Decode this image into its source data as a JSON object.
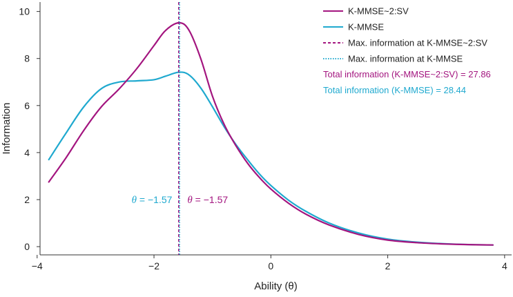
{
  "chart_data": {
    "type": "line",
    "xlabel": "Ability (θ)",
    "ylabel": "Information",
    "xlim": [
      -3.95,
      4.12
    ],
    "ylim": [
      -0.35,
      10.4
    ],
    "xticks": [
      -4,
      -2,
      0,
      2,
      4
    ],
    "xtick_labels": [
      "−4",
      "−2",
      "0",
      "2",
      "4"
    ],
    "yticks": [
      0,
      2,
      4,
      6,
      8,
      10
    ],
    "ytick_labels": [
      "0",
      "2",
      "4",
      "6",
      "8",
      "10"
    ],
    "grid": false,
    "legend_position": "top-right",
    "series": [
      {
        "name": "K-MMSE~2:SV",
        "color": "#a3157f",
        "style": "solid",
        "x": [
          -3.8,
          -3.5,
          -3.2,
          -2.9,
          -2.6,
          -2.3,
          -2.0,
          -1.8,
          -1.57,
          -1.4,
          -1.2,
          -1.0,
          -0.8,
          -0.6,
          -0.4,
          -0.2,
          0.0,
          0.3,
          0.6,
          1.0,
          1.5,
          2.0,
          2.5,
          3.0,
          3.5,
          3.8
        ],
        "y": [
          2.75,
          3.8,
          4.95,
          5.95,
          6.7,
          7.55,
          8.55,
          9.2,
          9.52,
          9.2,
          8.0,
          6.4,
          5.2,
          4.3,
          3.55,
          2.95,
          2.45,
          1.85,
          1.38,
          0.92,
          0.52,
          0.28,
          0.17,
          0.11,
          0.08,
          0.07
        ]
      },
      {
        "name": "K-MMSE",
        "color": "#1fa9cf",
        "style": "solid",
        "x": [
          -3.8,
          -3.5,
          -3.2,
          -2.9,
          -2.6,
          -2.3,
          -2.0,
          -1.8,
          -1.57,
          -1.4,
          -1.2,
          -1.0,
          -0.8,
          -0.6,
          -0.4,
          -0.2,
          0.0,
          0.3,
          0.6,
          1.0,
          1.5,
          2.0,
          2.5,
          3.0,
          3.5,
          3.8
        ],
        "y": [
          3.7,
          4.85,
          5.95,
          6.72,
          7.0,
          7.05,
          7.1,
          7.25,
          7.42,
          7.3,
          6.75,
          5.95,
          5.1,
          4.35,
          3.7,
          3.1,
          2.6,
          1.98,
          1.5,
          1.0,
          0.58,
          0.32,
          0.19,
          0.12,
          0.08,
          0.07
        ]
      }
    ],
    "vlines": [
      {
        "name": "Max. information at K-MMSE~2:SV",
        "x": -1.57,
        "color": "#a3157f",
        "style": "dashed"
      },
      {
        "name": "Max. information at K-MMSE",
        "x": -1.57,
        "color": "#1fa9cf",
        "style": "dotted"
      }
    ],
    "annotations": [
      {
        "symbol": "θ",
        "text": " = −1.57",
        "color": "#1fa9cf",
        "x": -1.57,
        "y": 2.0,
        "side": "left"
      },
      {
        "symbol": "θ",
        "text": " = −1.57",
        "color": "#a3157f",
        "x": -1.57,
        "y": 2.0,
        "side": "right"
      }
    ],
    "totals": [
      {
        "text": "Total information (K-MMSE~2:SV) = 27.86",
        "color": "#a3157f"
      },
      {
        "text": "Total information (K-MMSE) = 28.44",
        "color": "#1fa9cf"
      }
    ]
  }
}
